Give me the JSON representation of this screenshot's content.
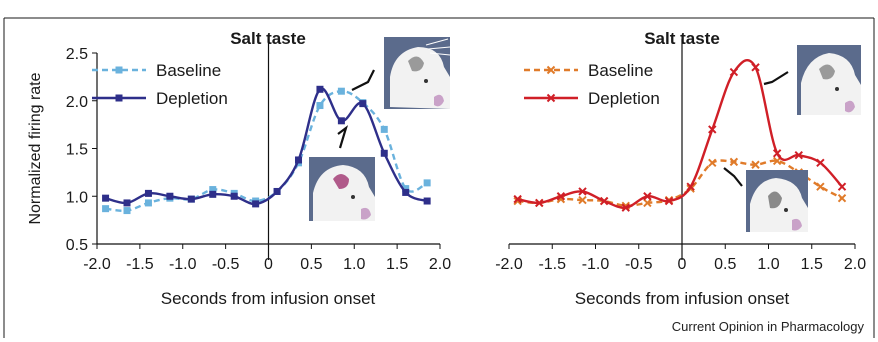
{
  "credit": "Current Opinion in Pharmacology",
  "colors": {
    "left_baseline": "#6ab2dd",
    "left_depletion": "#2e2f8a",
    "right_baseline": "#e07b2a",
    "right_depletion": "#d01f27",
    "axis": "#111111",
    "frame": "#1a1a1a",
    "icon_bg": "#5b6b8c"
  },
  "chart_data": [
    {
      "type": "line",
      "title": "Salt taste",
      "xlabel": "Seconds from infusion onset",
      "ylabel": "Normalized firing rate",
      "xlim": [
        -2.0,
        2.0
      ],
      "ylim": [
        0.5,
        2.5
      ],
      "xticks": [
        "-2.0",
        "-1.5",
        "-1.0",
        "-0.5",
        "0",
        "0.5",
        "1.0",
        "1.5",
        "2.0"
      ],
      "yticks": [
        "0.5",
        "1.0",
        "1.5",
        "2.0",
        "2.5"
      ],
      "legend": "top-left",
      "series": [
        {
          "name": "Baseline",
          "style": "dashed",
          "marker": "square",
          "x": [
            -1.9,
            -1.65,
            -1.4,
            -1.15,
            -0.9,
            -0.65,
            -0.4,
            -0.15,
            0.1,
            0.35,
            0.6,
            0.85,
            1.1,
            1.35,
            1.6,
            1.85
          ],
          "y": [
            0.87,
            0.85,
            0.93,
            0.98,
            0.97,
            1.07,
            1.03,
            0.95,
            1.05,
            1.35,
            1.95,
            2.1,
            1.98,
            1.7,
            1.08,
            1.14
          ]
        },
        {
          "name": "Depletion",
          "style": "solid",
          "marker": "square",
          "x": [
            -1.9,
            -1.65,
            -1.4,
            -1.15,
            -0.9,
            -0.65,
            -0.4,
            -0.15,
            0.1,
            0.35,
            0.6,
            0.85,
            1.1,
            1.35,
            1.6,
            1.85
          ],
          "y": [
            0.98,
            0.93,
            1.03,
            1.0,
            0.97,
            1.02,
            1.0,
            0.92,
            1.05,
            1.38,
            2.12,
            1.79,
            1.97,
            1.45,
            1.04,
            0.95
          ]
        }
      ]
    },
    {
      "type": "line",
      "title": "Salt taste",
      "xlabel": "Seconds from infusion onset",
      "ylabel": "",
      "xlim": [
        -2.0,
        2.0
      ],
      "ylim": [
        0.5,
        2.5
      ],
      "xticks": [
        "-2.0",
        "-1.5",
        "-1.0",
        "-0.5",
        "0",
        "0.5",
        "1.0",
        "1.5",
        "2.0"
      ],
      "yticks": [],
      "legend": "top-left",
      "series": [
        {
          "name": "Baseline",
          "style": "dashed",
          "marker": "x",
          "x": [
            -1.9,
            -1.65,
            -1.4,
            -1.15,
            -0.9,
            -0.65,
            -0.4,
            -0.15,
            0.1,
            0.35,
            0.6,
            0.85,
            1.1,
            1.35,
            1.6,
            1.85
          ],
          "y": [
            0.95,
            0.93,
            0.97,
            0.96,
            0.95,
            0.9,
            0.93,
            0.96,
            1.08,
            1.35,
            1.36,
            1.33,
            1.37,
            1.25,
            1.1,
            0.98
          ]
        },
        {
          "name": "Depletion",
          "style": "solid",
          "marker": "x",
          "x": [
            -1.9,
            -1.65,
            -1.4,
            -1.15,
            -0.9,
            -0.65,
            -0.4,
            -0.15,
            0.1,
            0.35,
            0.6,
            0.85,
            1.1,
            1.35,
            1.6,
            1.85
          ],
          "y": [
            0.97,
            0.93,
            1.0,
            1.05,
            0.95,
            0.88,
            1.0,
            0.95,
            1.1,
            1.7,
            2.3,
            2.35,
            1.45,
            1.43,
            1.35,
            1.1
          ]
        }
      ]
    }
  ]
}
